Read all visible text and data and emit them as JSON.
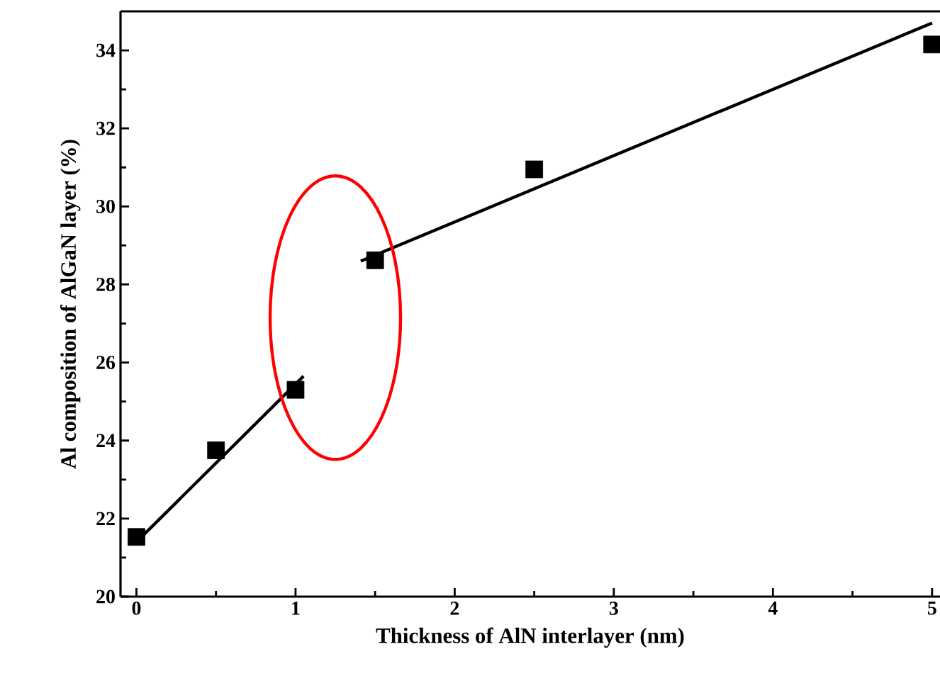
{
  "chart_data": {
    "type": "scatter",
    "xlabel": "Thickness of AlN interlayer (nm)",
    "ylabel": "Al composition of AlGaN layer (%)",
    "xlim": [
      -0.1,
      5.05
    ],
    "ylim": [
      20,
      35
    ],
    "xticks": [
      0,
      1,
      2,
      3,
      4,
      5
    ],
    "yticks": [
      20,
      22,
      24,
      26,
      28,
      30,
      32,
      34
    ],
    "marker": "square",
    "grid": false,
    "series": [
      {
        "color": "#000000",
        "x": [
          0,
          0.5,
          1,
          1.5,
          2.5,
          5
        ],
        "values": [
          21.53,
          23.75,
          25.3,
          28.62,
          30.95,
          34.15
        ]
      },
      {
        "type": "line",
        "marker": "none",
        "color": "#000000",
        "x": [
          0,
          1.05
        ],
        "values": [
          21.4,
          25.65
        ]
      },
      {
        "type": "line",
        "marker": "none",
        "color": "#000000",
        "x": [
          1.41,
          5
        ],
        "values": [
          28.6,
          34.7
        ]
      }
    ]
  }
}
